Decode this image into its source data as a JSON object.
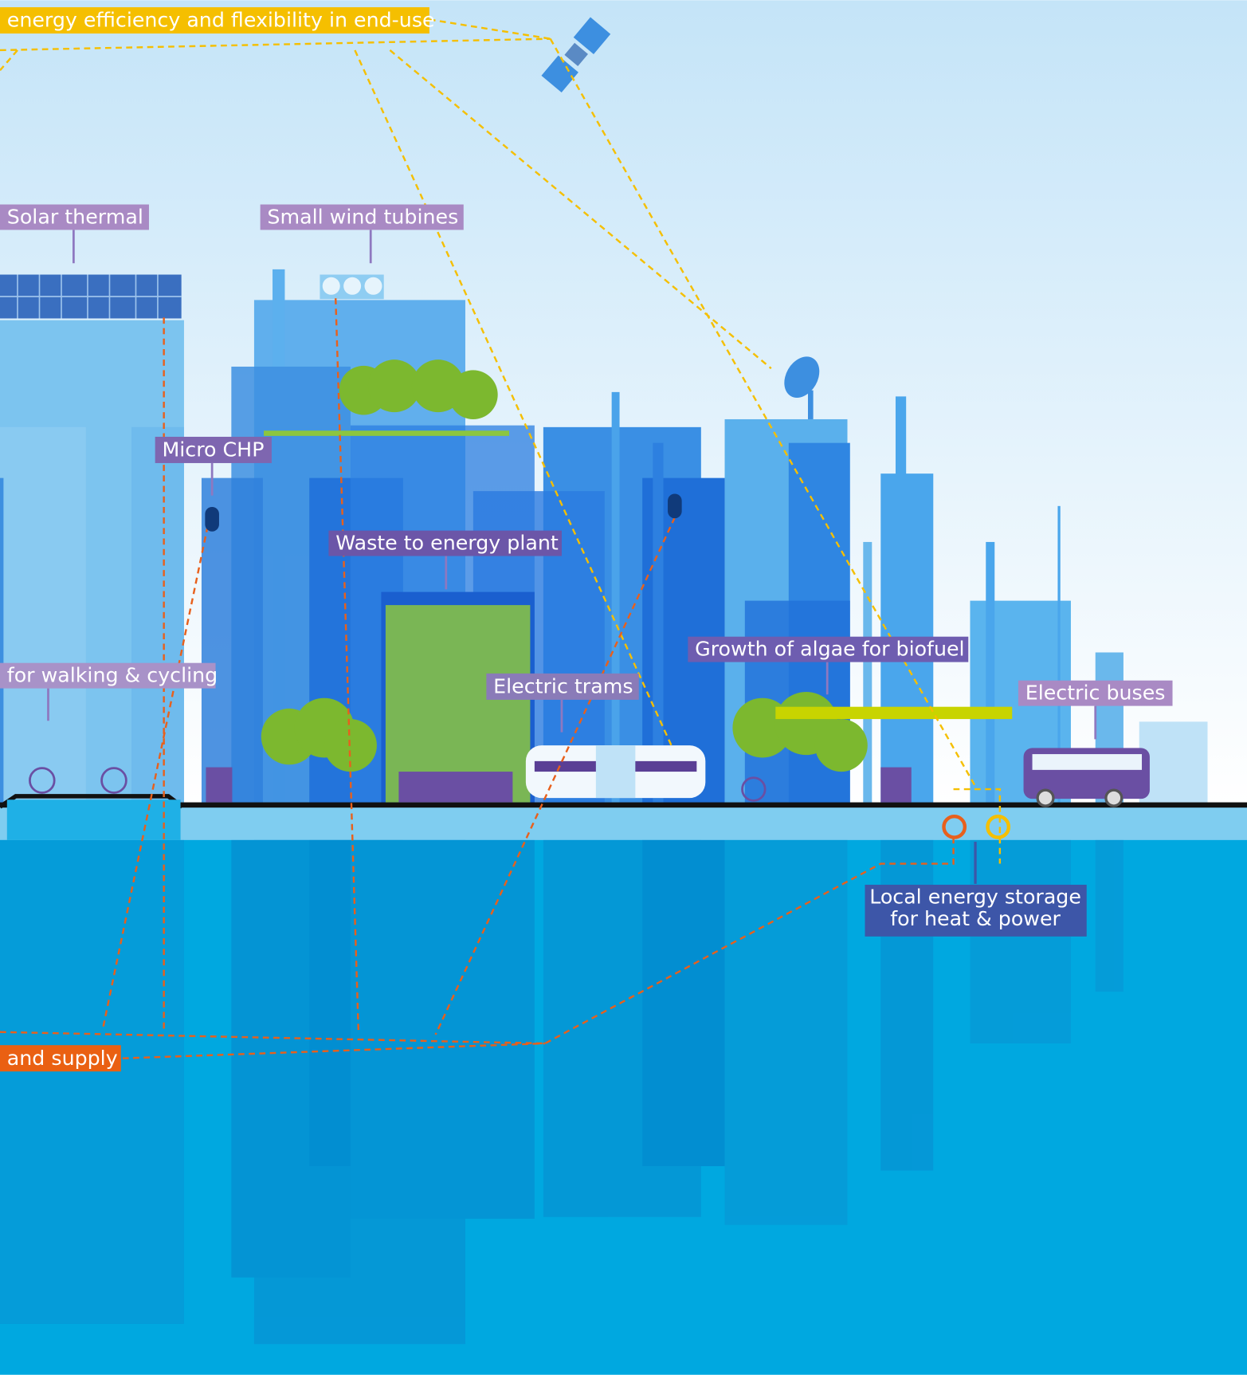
{
  "labels": [
    "energy efficiency and flexibility in end-use",
    "Solar thermal",
    "Small wind tubines",
    "Micro CHP",
    "Waste to energy plant",
    "for walking & cycling",
    "Electric trams",
    "Growth of algae for biofuel",
    "Electric buses",
    "and supply"
  ],
  "storage_label": [
    "Local energy storage",
    "for heat & power"
  ]
}
